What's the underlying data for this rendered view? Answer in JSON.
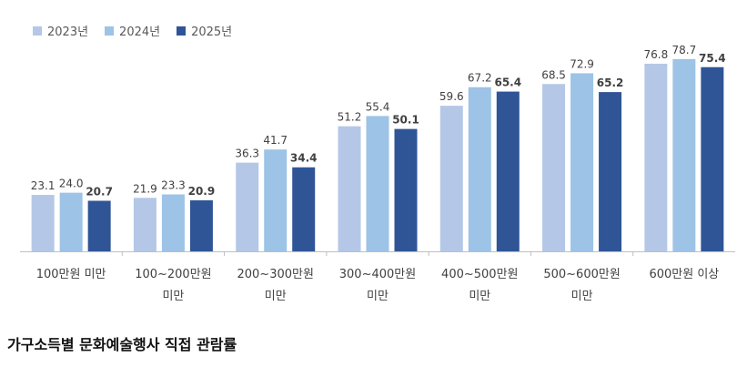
{
  "chart_data": {
    "type": "bar",
    "title": "",
    "xlabel": "",
    "ylabel": "",
    "ylim": [
      0,
      85
    ],
    "grid": false,
    "legend_position": "top-left",
    "categories": [
      [
        "100만원 미만"
      ],
      [
        "100~200만원",
        "미만"
      ],
      [
        "200~300만원",
        "미만"
      ],
      [
        "300~400만원",
        "미만"
      ],
      [
        "400~500만원",
        "미만"
      ],
      [
        "500~600만원",
        "미만"
      ],
      [
        "600만원 이상"
      ]
    ],
    "series": [
      {
        "name": "2023년",
        "color": "#b4c7e7",
        "bold_labels": false,
        "values": [
          23.1,
          21.9,
          36.3,
          51.2,
          59.6,
          68.5,
          76.8
        ]
      },
      {
        "name": "2024년",
        "color": "#9dc3e6",
        "bold_labels": false,
        "values": [
          24.0,
          23.3,
          41.7,
          55.4,
          67.2,
          72.9,
          78.7
        ]
      },
      {
        "name": "2025년",
        "color": "#2f5597",
        "bold_labels": true,
        "values": [
          20.7,
          20.9,
          34.4,
          50.1,
          65.4,
          65.2,
          75.4
        ]
      }
    ]
  },
  "caption": "가구소득별 문화예술행사 직접 관람률"
}
